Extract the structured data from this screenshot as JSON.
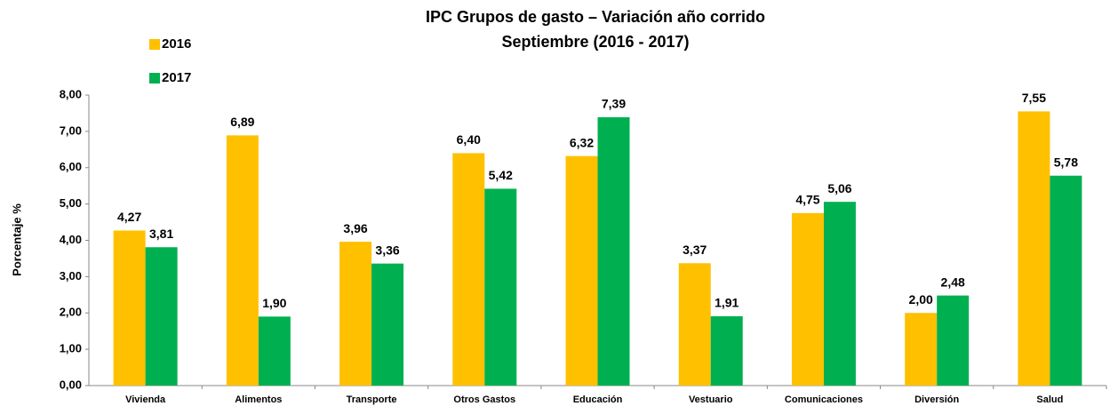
{
  "chart_data": {
    "type": "bar",
    "title": "IPC Grupos de gasto – Variación año corrido",
    "subtitle": "Septiembre  (2016 - 2017)",
    "y_label": "Porcentaje %",
    "categories": [
      "Vivienda",
      "Alimentos",
      "Transporte",
      "Otros Gastos",
      "Educación",
      "Vestuario",
      "Comunicaciones",
      "Diversión",
      "Salud"
    ],
    "series": [
      {
        "name": "2016",
        "color": "#FFC000",
        "values": [
          4.27,
          6.89,
          3.96,
          6.4,
          6.32,
          3.37,
          4.75,
          2.0,
          7.55
        ],
        "value_labels": [
          "4,27",
          "6,89",
          "3,96",
          "6,40",
          "6,32",
          "3,37",
          "4,75",
          "2,00",
          "7,55"
        ]
      },
      {
        "name": "2017",
        "color": "#00B050",
        "values": [
          3.81,
          1.9,
          3.36,
          5.42,
          7.39,
          1.91,
          5.06,
          2.48,
          5.78
        ],
        "value_labels": [
          "3,81",
          "1,90",
          "3,36",
          "5,42",
          "7,39",
          "1,91",
          "5,06",
          "2,48",
          "5,78"
        ]
      }
    ],
    "ylim": [
      0,
      8
    ],
    "yticks": [
      {
        "value": 0,
        "label": "0,00"
      },
      {
        "value": 1,
        "label": "1,00"
      },
      {
        "value": 2,
        "label": "2,00"
      },
      {
        "value": 3,
        "label": "3,00"
      },
      {
        "value": 4,
        "label": "4,00"
      },
      {
        "value": 5,
        "label": "5,00"
      },
      {
        "value": 6,
        "label": "6,00"
      },
      {
        "value": 7,
        "label": "7,00"
      },
      {
        "value": 8,
        "label": "8,00"
      }
    ],
    "grid": false,
    "legend": "top-left"
  }
}
